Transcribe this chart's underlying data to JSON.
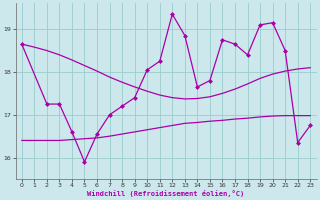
{
  "xlabel": "Windchill (Refroidissement éolien,°C)",
  "bg_color": "#cce8ec",
  "grid_color": "#99cccc",
  "line_color": "#aa00aa",
  "xlim": [
    -0.5,
    23.5
  ],
  "ylim": [
    15.5,
    19.6
  ],
  "yticks": [
    16,
    17,
    18,
    19
  ],
  "xticks": [
    0,
    1,
    2,
    3,
    4,
    5,
    6,
    7,
    8,
    9,
    10,
    11,
    12,
    13,
    14,
    15,
    16,
    17,
    18,
    19,
    20,
    21,
    22,
    23
  ],
  "s1_x": [
    0,
    1,
    2,
    3,
    4,
    5,
    6,
    7,
    8,
    9,
    10,
    11,
    12,
    13,
    14,
    15,
    16,
    17,
    18,
    19,
    20,
    21,
    22,
    23
  ],
  "s1_y": [
    18.65,
    18.58,
    18.5,
    18.4,
    18.28,
    18.15,
    18.02,
    17.88,
    17.76,
    17.65,
    17.55,
    17.46,
    17.4,
    17.37,
    17.38,
    17.42,
    17.5,
    17.6,
    17.72,
    17.85,
    17.95,
    18.02,
    18.07,
    18.1
  ],
  "s2_x": [
    0,
    2,
    3,
    4,
    5,
    6,
    7,
    8,
    9,
    10,
    11,
    12,
    13,
    14,
    15,
    16,
    17,
    18,
    19,
    20,
    21,
    22,
    23
  ],
  "s2_y": [
    18.65,
    17.25,
    17.25,
    16.6,
    15.9,
    16.55,
    17.0,
    17.2,
    17.4,
    18.05,
    18.25,
    19.35,
    18.85,
    17.65,
    17.8,
    18.75,
    18.65,
    18.4,
    19.1,
    19.15,
    18.5,
    16.35,
    16.75
  ],
  "s3_x": [
    0,
    2,
    3,
    4,
    5,
    6,
    7,
    8,
    9,
    10,
    11,
    12,
    13,
    14,
    15,
    16,
    17,
    18,
    19,
    20,
    21,
    22,
    23
  ],
  "s3_y": [
    16.4,
    16.4,
    16.4,
    16.42,
    16.44,
    16.46,
    16.5,
    16.55,
    16.6,
    16.65,
    16.7,
    16.75,
    16.8,
    16.82,
    16.85,
    16.87,
    16.9,
    16.92,
    16.95,
    16.97,
    16.98,
    16.98,
    16.98
  ]
}
